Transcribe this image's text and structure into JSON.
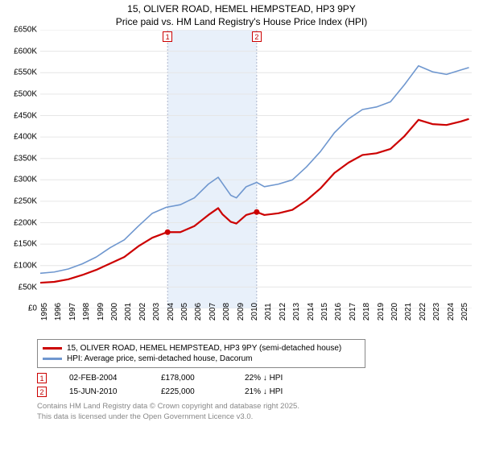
{
  "title_line1": "15, OLIVER ROAD, HEMEL HEMPSTEAD, HP3 9PY",
  "title_line2": "Price paid vs. HM Land Registry's House Price Index (HPI)",
  "chart": {
    "type": "line",
    "background_color": "#ffffff",
    "grid_color": "#e6e6e6",
    "highlight_band_fill": "#e8f0fa",
    "highlight_band_edge": "#adb5cc",
    "highlight_band_edge_dash": "2,2",
    "axis_fontsize": 10,
    "x_years": [
      1995,
      1996,
      1997,
      1998,
      1999,
      2000,
      2001,
      2002,
      2003,
      2004,
      2005,
      2006,
      2007,
      2008,
      2009,
      2010,
      2011,
      2012,
      2013,
      2014,
      2015,
      2016,
      2017,
      2018,
      2019,
      2020,
      2021,
      2022,
      2023,
      2024,
      2025
    ],
    "xlim": [
      1995,
      2025.8
    ],
    "ylim": [
      0,
      650000
    ],
    "y_ticks": [
      0,
      50000,
      100000,
      150000,
      200000,
      250000,
      300000,
      350000,
      400000,
      450000,
      500000,
      550000,
      600000,
      650000
    ],
    "y_tick_labels": [
      "£0",
      "£50K",
      "£100K",
      "£150K",
      "£200K",
      "£250K",
      "£300K",
      "£350K",
      "£400K",
      "£450K",
      "£500K",
      "£550K",
      "£600K",
      "£650K"
    ],
    "highlight_x": [
      2004.09,
      2010.45
    ],
    "series": [
      {
        "name": "price_paid",
        "label": "15, OLIVER ROAD, HEMEL HEMPSTEAD, HP3 9PY (semi-detached house)",
        "color": "#cc0000",
        "width": 2.2,
        "points": [
          [
            1995,
            60000
          ],
          [
            1996,
            62000
          ],
          [
            1997,
            68000
          ],
          [
            1998,
            78000
          ],
          [
            1999,
            90000
          ],
          [
            2000,
            105000
          ],
          [
            2001,
            120000
          ],
          [
            2002,
            145000
          ],
          [
            2003,
            165000
          ],
          [
            2003.9,
            176000
          ],
          [
            2004.09,
            178000
          ],
          [
            2005,
            178000
          ],
          [
            2006,
            192000
          ],
          [
            2007,
            218000
          ],
          [
            2007.7,
            234000
          ],
          [
            2008,
            220000
          ],
          [
            2008.6,
            202000
          ],
          [
            2009,
            198000
          ],
          [
            2009.7,
            218000
          ],
          [
            2010.45,
            225000
          ],
          [
            2011,
            218000
          ],
          [
            2012,
            222000
          ],
          [
            2013,
            230000
          ],
          [
            2014,
            252000
          ],
          [
            2015,
            280000
          ],
          [
            2016,
            316000
          ],
          [
            2017,
            340000
          ],
          [
            2018,
            358000
          ],
          [
            2019,
            362000
          ],
          [
            2020,
            372000
          ],
          [
            2021,
            402000
          ],
          [
            2022,
            440000
          ],
          [
            2023,
            430000
          ],
          [
            2024,
            428000
          ],
          [
            2025,
            436000
          ],
          [
            2025.6,
            442000
          ]
        ]
      },
      {
        "name": "hpi",
        "label": "HPI: Average price, semi-detached house, Dacorum",
        "color": "#6f97cf",
        "width": 1.6,
        "points": [
          [
            1995,
            82000
          ],
          [
            1996,
            85000
          ],
          [
            1997,
            92000
          ],
          [
            1998,
            104000
          ],
          [
            1999,
            120000
          ],
          [
            2000,
            142000
          ],
          [
            2001,
            160000
          ],
          [
            2002,
            192000
          ],
          [
            2003,
            222000
          ],
          [
            2004,
            236000
          ],
          [
            2005,
            242000
          ],
          [
            2006,
            258000
          ],
          [
            2007,
            290000
          ],
          [
            2007.7,
            306000
          ],
          [
            2008,
            292000
          ],
          [
            2008.6,
            264000
          ],
          [
            2009,
            258000
          ],
          [
            2009.7,
            284000
          ],
          [
            2010.45,
            294000
          ],
          [
            2011,
            284000
          ],
          [
            2012,
            290000
          ],
          [
            2013,
            300000
          ],
          [
            2014,
            330000
          ],
          [
            2015,
            366000
          ],
          [
            2016,
            410000
          ],
          [
            2017,
            442000
          ],
          [
            2018,
            464000
          ],
          [
            2019,
            470000
          ],
          [
            2020,
            482000
          ],
          [
            2021,
            522000
          ],
          [
            2022,
            566000
          ],
          [
            2023,
            552000
          ],
          [
            2024,
            546000
          ],
          [
            2025,
            556000
          ],
          [
            2025.6,
            562000
          ]
        ]
      }
    ],
    "sale_markers": [
      {
        "n": "1",
        "x": 2004.09,
        "y": 178000,
        "dot_color": "#cc0000"
      },
      {
        "n": "2",
        "x": 2010.45,
        "y": 225000,
        "dot_color": "#cc0000"
      }
    ]
  },
  "legend": {
    "border_color": "#888888",
    "fontsize": 10,
    "rows": [
      {
        "color": "#cc0000",
        "label": "15, OLIVER ROAD, HEMEL HEMPSTEAD, HP3 9PY (semi-detached house)"
      },
      {
        "color": "#6f97cf",
        "label": "HPI: Average price, semi-detached house, Dacorum"
      }
    ]
  },
  "transactions": [
    {
      "n": "1",
      "date": "02-FEB-2004",
      "price": "£178,000",
      "delta": "22% ↓ HPI"
    },
    {
      "n": "2",
      "date": "15-JUN-2010",
      "price": "£225,000",
      "delta": "21% ↓ HPI"
    }
  ],
  "copyright_line1": "Contains HM Land Registry data © Crown copyright and database right 2025.",
  "copyright_line2": "This data is licensed under the Open Government Licence v3.0."
}
